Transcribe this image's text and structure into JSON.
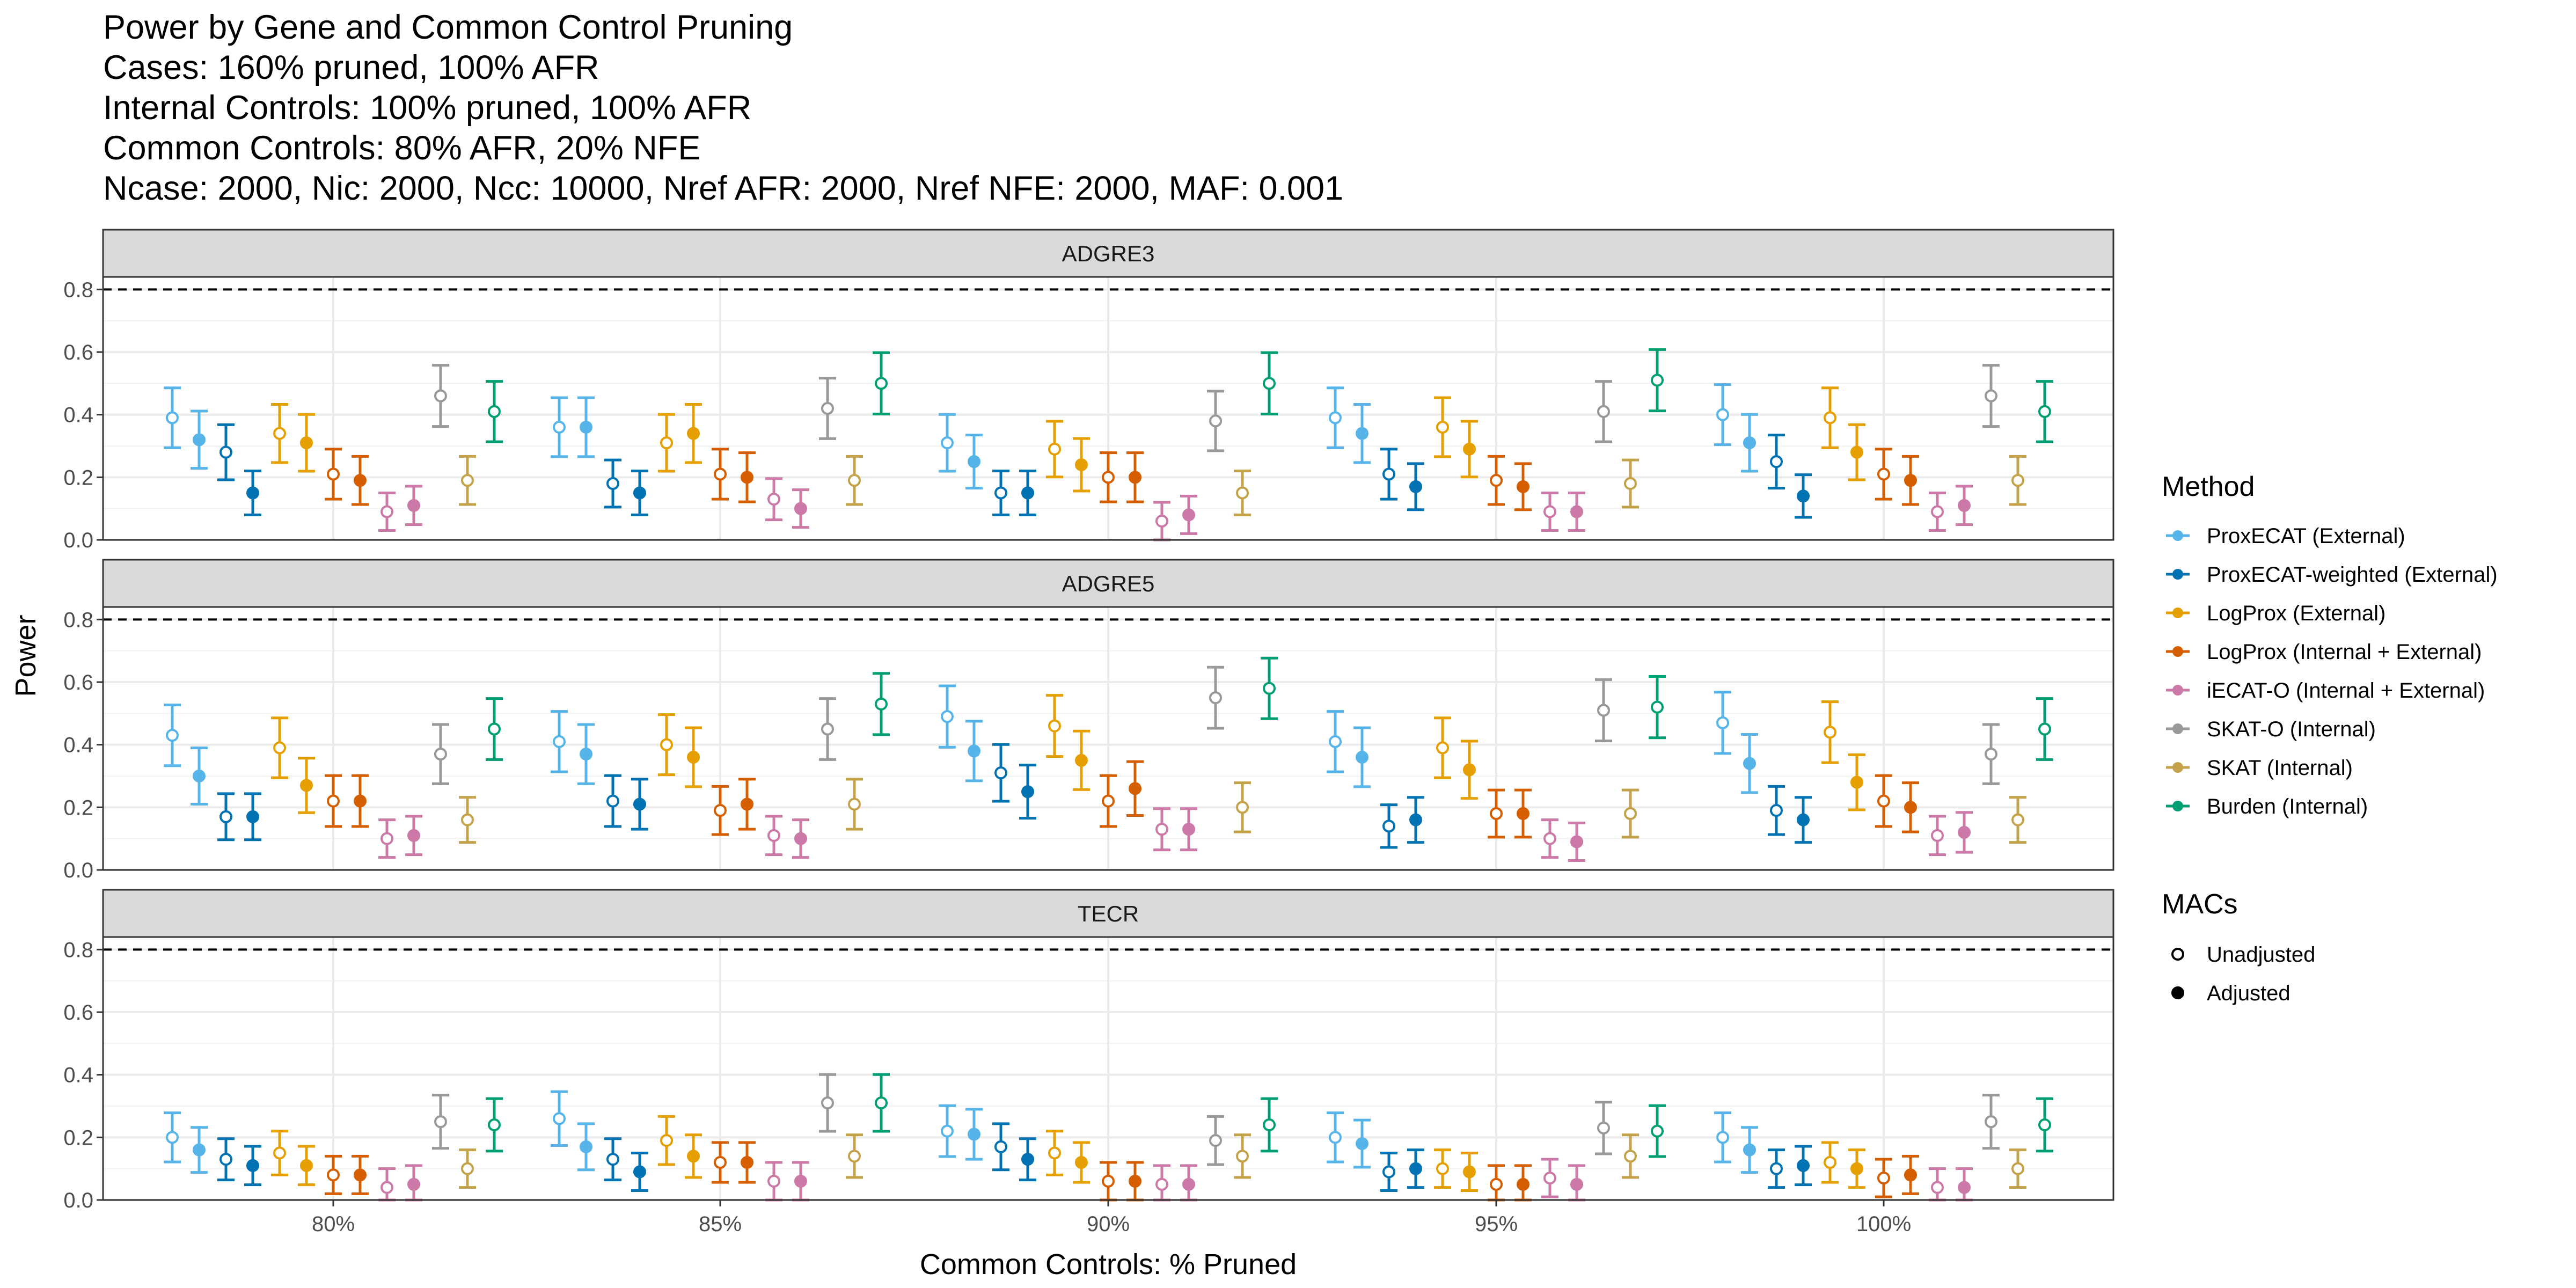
{
  "chart_data": {
    "type": "scatter",
    "title_lines": [
      "Power by Gene and Common Control Pruning",
      "Cases: 160% pruned, 100% AFR",
      "Internal Controls: 100% pruned, 100% AFR",
      "Common Controls: 80% AFR, 20% NFE",
      "Ncase: 2000, Nic: 2000, Ncc: 10000, Nref AFR: 2000, Nref NFE: 2000, MAF: 0.001"
    ],
    "xlabel": "Common Controls: % Pruned",
    "ylabel": "Power",
    "categories": [
      "80%",
      "85%",
      "90%",
      "95%",
      "100%"
    ],
    "ylim": [
      0,
      0.84
    ],
    "yticks": [
      "0.0",
      "0.2",
      "0.4",
      "0.6",
      "0.8"
    ],
    "reference_line": 0.8,
    "grid": true,
    "legend_placement": "right",
    "method_legend": {
      "title": "Method",
      "items": [
        {
          "name": "ProxECAT (External)",
          "color": "#56B4E9"
        },
        {
          "name": "ProxECAT-weighted (External)",
          "color": "#0072B2"
        },
        {
          "name": "LogProx (External)",
          "color": "#E69F00"
        },
        {
          "name": "LogProx (Internal + External)",
          "color": "#D55E00"
        },
        {
          "name": "iECAT-O (Internal + External)",
          "color": "#CC79A7"
        },
        {
          "name": "SKAT-O (Internal)",
          "color": "#999999"
        },
        {
          "name": "SKAT (Internal)",
          "color": "#C4A24A"
        },
        {
          "name": "Burden (Internal)",
          "color": "#009E73"
        }
      ]
    },
    "macs_legend": {
      "title": "MACs",
      "items": [
        "Unadjusted",
        "Adjusted"
      ]
    },
    "series_order": [
      {
        "method": 0,
        "macs": "Unadjusted"
      },
      {
        "method": 0,
        "macs": "Adjusted"
      },
      {
        "method": 1,
        "macs": "Unadjusted"
      },
      {
        "method": 1,
        "macs": "Adjusted"
      },
      {
        "method": 2,
        "macs": "Unadjusted"
      },
      {
        "method": 2,
        "macs": "Adjusted"
      },
      {
        "method": 3,
        "macs": "Unadjusted"
      },
      {
        "method": 3,
        "macs": "Adjusted"
      },
      {
        "method": 4,
        "macs": "Unadjusted"
      },
      {
        "method": 4,
        "macs": "Adjusted"
      },
      {
        "method": 5,
        "macs": "Unadjusted"
      },
      {
        "method": 6,
        "macs": "Unadjusted"
      },
      {
        "method": 7,
        "macs": "Unadjusted"
      }
    ],
    "panels": [
      {
        "gene": "ADGRE3",
        "values": [
          [
            0.39,
            0.32,
            0.28,
            0.15,
            0.34,
            0.31,
            0.21,
            0.19,
            0.09,
            0.11,
            0.46,
            0.19,
            0.41
          ],
          [
            0.36,
            0.36,
            0.18,
            0.15,
            0.31,
            0.34,
            0.21,
            0.2,
            0.13,
            0.1,
            0.42,
            0.19,
            0.5
          ],
          [
            0.31,
            0.25,
            0.15,
            0.15,
            0.29,
            0.24,
            0.2,
            0.2,
            0.06,
            0.08,
            0.38,
            0.15,
            0.5
          ],
          [
            0.39,
            0.34,
            0.21,
            0.17,
            0.36,
            0.29,
            0.19,
            0.17,
            0.09,
            0.09,
            0.41,
            0.18,
            0.51
          ],
          [
            0.4,
            0.31,
            0.25,
            0.14,
            0.39,
            0.28,
            0.21,
            0.19,
            0.09,
            0.11,
            0.46,
            0.19,
            0.41
          ]
        ]
      },
      {
        "gene": "ADGRE5",
        "values": [
          [
            0.43,
            0.3,
            0.17,
            0.17,
            0.39,
            0.27,
            0.22,
            0.22,
            0.1,
            0.11,
            0.37,
            0.16,
            0.45
          ],
          [
            0.41,
            0.37,
            0.22,
            0.21,
            0.4,
            0.36,
            0.19,
            0.21,
            0.11,
            0.1,
            0.45,
            0.21,
            0.53
          ],
          [
            0.49,
            0.38,
            0.31,
            0.25,
            0.46,
            0.35,
            0.22,
            0.26,
            0.13,
            0.13,
            0.55,
            0.2,
            0.58
          ],
          [
            0.41,
            0.36,
            0.14,
            0.16,
            0.39,
            0.32,
            0.18,
            0.18,
            0.1,
            0.09,
            0.51,
            0.18,
            0.52
          ],
          [
            0.47,
            0.34,
            0.19,
            0.16,
            0.44,
            0.28,
            0.22,
            0.2,
            0.11,
            0.12,
            0.37,
            0.16,
            0.45
          ]
        ]
      },
      {
        "gene": "TECR",
        "values": [
          [
            0.2,
            0.16,
            0.13,
            0.11,
            0.15,
            0.11,
            0.08,
            0.08,
            0.04,
            0.05,
            0.25,
            0.1,
            0.24
          ],
          [
            0.26,
            0.17,
            0.13,
            0.09,
            0.19,
            0.14,
            0.12,
            0.12,
            0.06,
            0.06,
            0.31,
            0.14,
            0.31
          ],
          [
            0.22,
            0.21,
            0.17,
            0.13,
            0.15,
            0.12,
            0.06,
            0.06,
            0.05,
            0.05,
            0.19,
            0.14,
            0.24
          ],
          [
            0.2,
            0.18,
            0.09,
            0.1,
            0.1,
            0.09,
            0.05,
            0.05,
            0.07,
            0.05,
            0.23,
            0.14,
            0.22
          ],
          [
            0.2,
            0.16,
            0.1,
            0.11,
            0.12,
            0.1,
            0.07,
            0.08,
            0.04,
            0.04,
            0.25,
            0.1,
            0.24
          ]
        ]
      }
    ]
  }
}
